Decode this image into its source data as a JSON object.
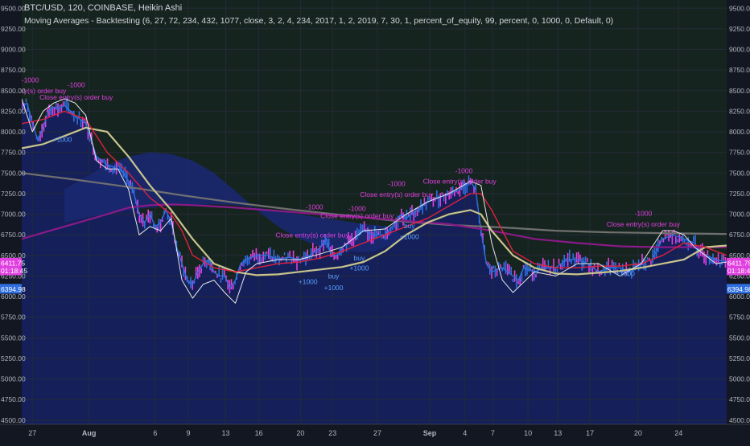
{
  "header": {
    "symbol_line": "BTC/USD, 120, COINBASE, Heikin Ashi",
    "study_line": "Moving Averages - Backtesting (6, 27, 72, 234, 432, 1077, close, 3, 2, 4, 234, 2017, 1, 2, 2019, 7, 30, 1, percent_of_equity, 99, percent, 0, 1000, 0, Default, 0)"
  },
  "colors": {
    "background": "#131722",
    "lower_fill": "#15205a",
    "cloud_fill": "#1a2870",
    "upper_fill": "#16241f",
    "grid": "#242a38",
    "axis_text": "#b2b5be",
    "candles": "#2f6fe0",
    "trade_buy": "#5aa0ff",
    "trade_close": "#e040e0",
    "ma_fast": "#e040e0",
    "ma_mid": "#e8e8e8",
    "ma_red": "#e02040",
    "ma_olive": "#c8c48c",
    "ma_gray": "#707070",
    "ma_purple": "#8a1a88"
  },
  "chart_data": {
    "type": "line",
    "title": "BTC/USD, 120, COINBASE, Heikin Ashi",
    "ylim": [
      4450,
      9600
    ],
    "y_ticks": [
      4500,
      4750,
      5000,
      5250,
      5500,
      5750,
      6000,
      6250,
      6500,
      6750,
      7000,
      7250,
      7500,
      7750,
      8000,
      8250,
      8500,
      8750,
      9000,
      9250,
      9500
    ],
    "y_tick_labels": [
      "4500.00",
      "4750.00",
      "5000.00",
      "5250.00",
      "5500.00",
      "5750.00",
      "6000.00",
      "6250.00",
      "6500.00",
      "6750.00",
      "7000.00",
      "7250.00",
      "7500.00",
      "7750.00",
      "8000.00",
      "8250.00",
      "8500.00",
      "8750.00",
      "9000.00",
      "9250.00",
      "9500.00"
    ],
    "x_range": [
      0,
      66
    ],
    "x_ticks": [
      {
        "x": 1,
        "label": "27"
      },
      {
        "x": 6.3,
        "label": "Aug"
      },
      {
        "x": 12.5,
        "label": "6"
      },
      {
        "x": 15.6,
        "label": "9"
      },
      {
        "x": 19.1,
        "label": "13"
      },
      {
        "x": 22.2,
        "label": "16"
      },
      {
        "x": 26.1,
        "label": "20"
      },
      {
        "x": 29.1,
        "label": "23"
      },
      {
        "x": 33.3,
        "label": "27"
      },
      {
        "x": 38.2,
        "label": "Sep"
      },
      {
        "x": 41.5,
        "label": "4"
      },
      {
        "x": 44.1,
        "label": "7"
      },
      {
        "x": 47.4,
        "label": "10"
      },
      {
        "x": 50.2,
        "label": "13"
      },
      {
        "x": 53.2,
        "label": "17"
      },
      {
        "x": 57.7,
        "label": "20"
      },
      {
        "x": 61.5,
        "label": "24"
      }
    ],
    "price_badges": [
      {
        "value": 6411.75,
        "label": "6411.75",
        "color": "#e040e0"
      },
      {
        "value": 6318.45,
        "label": "01:18:45",
        "color": "#e040e0"
      },
      {
        "value": 6094.98,
        "label": "6394.98",
        "color": "#2f6fe0"
      }
    ],
    "price": {
      "name": "Heikin Ashi close",
      "x": [
        0,
        0.5,
        1,
        1.5,
        2,
        2.5,
        3,
        3.5,
        4,
        5,
        6,
        6.5,
        7,
        7.5,
        8,
        9,
        9.5,
        10,
        10.5,
        11,
        11.5,
        12,
        12.5,
        13,
        13.5,
        14,
        14.5,
        15,
        15.5,
        16,
        16.5,
        17,
        17.5,
        18,
        18.5,
        19,
        19.5,
        20,
        20.5,
        21,
        22,
        23,
        24,
        25,
        26,
        27,
        28,
        28.5,
        29,
        29.5,
        30,
        31,
        32,
        33,
        34,
        35,
        35.5,
        36,
        37,
        38,
        39,
        40,
        41,
        42,
        42.5,
        43,
        43.5,
        44,
        45,
        46,
        46.5,
        47,
        48,
        49,
        50,
        51,
        52,
        53,
        54,
        55,
        56,
        57,
        58,
        59,
        60,
        61,
        62,
        63,
        63.5,
        64,
        65,
        66
      ],
      "y": [
        8300,
        8350,
        8100,
        7900,
        8050,
        8250,
        8300,
        8280,
        8320,
        8200,
        8100,
        7900,
        7700,
        7650,
        7600,
        7550,
        7500,
        7400,
        7250,
        7000,
        6900,
        7000,
        6850,
        6900,
        7050,
        6900,
        6600,
        6400,
        6200,
        6150,
        6300,
        6400,
        6450,
        6300,
        6250,
        6250,
        6100,
        6200,
        6400,
        6450,
        6500,
        6500,
        6450,
        6480,
        6450,
        6500,
        6600,
        6700,
        6500,
        6500,
        6600,
        6700,
        6800,
        6750,
        6750,
        6900,
        7000,
        6950,
        7050,
        7150,
        7200,
        7250,
        7300,
        7400,
        7300,
        6800,
        6400,
        6300,
        6350,
        6250,
        6200,
        6350,
        6300,
        6350,
        6350,
        6450,
        6450,
        6400,
        6300,
        6350,
        6350,
        6300,
        6400,
        6450,
        6700,
        6750,
        6700,
        6650,
        6550,
        6500,
        6450,
        6420
      ]
    },
    "series": [
      {
        "key": "ma_mid",
        "x": [
          0,
          1,
          2,
          3,
          4,
          5,
          6,
          7,
          8,
          9,
          10,
          11,
          12,
          13,
          14,
          15,
          16,
          17,
          18,
          19,
          20,
          21,
          22,
          24,
          26,
          28,
          30,
          32,
          34,
          36,
          38,
          40,
          42,
          43,
          44,
          45,
          46,
          48,
          50,
          52,
          54,
          56,
          58,
          60,
          61,
          62,
          63,
          64,
          65,
          66
        ],
        "y": [
          8400,
          8000,
          8250,
          8350,
          8400,
          8350,
          8200,
          7650,
          7550,
          7550,
          7300,
          6750,
          6850,
          6800,
          6950,
          6200,
          5980,
          6150,
          6200,
          6050,
          5920,
          6300,
          6400,
          6450,
          6450,
          6520,
          6600,
          6800,
          6820,
          7000,
          7150,
          7250,
          7400,
          7350,
          6650,
          6200,
          6050,
          6300,
          6250,
          6400,
          6400,
          6250,
          6400,
          6800,
          6800,
          6750,
          6600,
          6500,
          6400,
          6420
        ]
      },
      {
        "key": "ma_red",
        "x": [
          0,
          2,
          4,
          6,
          7,
          8,
          10,
          12,
          14,
          15,
          16,
          18,
          20,
          22,
          24,
          26,
          28,
          30,
          32,
          34,
          36,
          38,
          40,
          42,
          43,
          44,
          45,
          46,
          48,
          50,
          52,
          54,
          56,
          58,
          60,
          62,
          64,
          66
        ],
        "y": [
          8100,
          8150,
          8250,
          8150,
          7950,
          7750,
          7500,
          7200,
          7000,
          6800,
          6500,
          6350,
          6300,
          6350,
          6400,
          6420,
          6470,
          6550,
          6650,
          6750,
          6850,
          6950,
          7100,
          7250,
          7250,
          7050,
          6800,
          6550,
          6400,
          6350,
          6350,
          6370,
          6370,
          6400,
          6500,
          6650,
          6600,
          6500
        ]
      },
      {
        "key": "ma_olive",
        "x": [
          0,
          2,
          4,
          6,
          8,
          10,
          12,
          14,
          16,
          18,
          20,
          22,
          24,
          26,
          28,
          30,
          32,
          34,
          36,
          38,
          40,
          42,
          43,
          44,
          46,
          48,
          50,
          52,
          54,
          56,
          58,
          60,
          62,
          64,
          66
        ],
        "y": [
          7800,
          7850,
          7950,
          8050,
          8000,
          7700,
          7350,
          7050,
          6700,
          6400,
          6300,
          6260,
          6270,
          6300,
          6330,
          6360,
          6420,
          6550,
          6750,
          6900,
          7000,
          7050,
          7000,
          6800,
          6500,
          6350,
          6280,
          6270,
          6290,
          6310,
          6350,
          6400,
          6450,
          6600,
          6620
        ]
      },
      {
        "key": "ma_gray",
        "x": [
          0,
          5,
          10,
          15,
          20,
          25,
          30,
          35,
          40,
          45,
          50,
          55,
          60,
          66
        ],
        "y": [
          7500,
          7420,
          7330,
          7230,
          7140,
          7060,
          6990,
          6920,
          6870,
          6840,
          6800,
          6780,
          6770,
          6760
        ]
      },
      {
        "key": "ma_purple",
        "x": [
          0,
          4,
          8,
          10,
          12,
          14,
          16,
          20,
          24,
          28,
          32,
          36,
          40,
          44,
          48,
          52,
          56,
          60,
          64,
          66
        ],
        "y": [
          6700,
          6850,
          7000,
          7080,
          7110,
          7120,
          7110,
          7080,
          7040,
          7000,
          6960,
          6920,
          6880,
          6800,
          6700,
          6650,
          6610,
          6600,
          6600,
          6600
        ]
      }
    ],
    "cloud": {
      "x": [
        4,
        6,
        8,
        10,
        12,
        14,
        16,
        18,
        20,
        22,
        24,
        26,
        28,
        30,
        32,
        33,
        34,
        35,
        36,
        34.5,
        32,
        30,
        28,
        26,
        24,
        22,
        20,
        18,
        16,
        14,
        12,
        10,
        8,
        6,
        4
      ],
      "y": [
        7300,
        7450,
        7600,
        7700,
        7750,
        7730,
        7650,
        7500,
        7280,
        7050,
        6850,
        6700,
        6600,
        6560,
        6540,
        6550,
        6600,
        6650,
        6700,
        6850,
        6880,
        6920,
        6960,
        7000,
        7040,
        7080,
        7110,
        7120,
        7110,
        7100,
        7080,
        7050,
        7000,
        6960,
        6900
      ]
    },
    "annotations": [
      {
        "x": 0.8,
        "y": 8600,
        "text": "-1000",
        "role": "close"
      },
      {
        "x": 1.6,
        "y": 8470,
        "text": "Entry(s) order buy",
        "role": "close"
      },
      {
        "x": 5.1,
        "y": 8540,
        "text": "-1000",
        "role": "close"
      },
      {
        "x": 5.1,
        "y": 8390,
        "text": "Close entry(s) order buy",
        "role": "close"
      },
      {
        "x": 3.8,
        "y": 7880,
        "text": "+1000",
        "role": "buy"
      },
      {
        "x": 27.4,
        "y": 7060,
        "text": "-1000",
        "role": "close"
      },
      {
        "x": 27.2,
        "y": 6720,
        "text": "Close entry(s) order buy",
        "role": "close"
      },
      {
        "x": 26.8,
        "y": 6150,
        "text": "+1000",
        "role": "buy"
      },
      {
        "x": 29.2,
        "y": 6220,
        "text": "buy",
        "role": "buy"
      },
      {
        "x": 29.2,
        "y": 6080,
        "text": "+1000",
        "role": "buy"
      },
      {
        "x": 31.4,
        "y": 7040,
        "text": "-1000",
        "role": "close"
      },
      {
        "x": 31.4,
        "y": 6950,
        "text": "Close entry(s) order buy",
        "role": "close"
      },
      {
        "x": 31.6,
        "y": 6440,
        "text": "buy",
        "role": "buy"
      },
      {
        "x": 31.6,
        "y": 6320,
        "text": "+1000",
        "role": "buy"
      },
      {
        "x": 35.1,
        "y": 7340,
        "text": "-1000",
        "role": "close"
      },
      {
        "x": 35.1,
        "y": 7210,
        "text": "Close entry(s) order buy",
        "role": "close"
      },
      {
        "x": 36.3,
        "y": 6830,
        "text": "buy",
        "role": "buy"
      },
      {
        "x": 36.3,
        "y": 6700,
        "text": "+1000",
        "role": "buy"
      },
      {
        "x": 41.4,
        "y": 7500,
        "text": "-1000",
        "role": "close"
      },
      {
        "x": 41.0,
        "y": 7370,
        "text": "Close entry(s) order buy",
        "role": "close"
      },
      {
        "x": 58.2,
        "y": 6980,
        "text": "-1000",
        "role": "close"
      },
      {
        "x": 58.2,
        "y": 6850,
        "text": "Close entry(s) order buy",
        "role": "close"
      },
      {
        "x": 56.5,
        "y": 6250,
        "text": "+1000",
        "role": "buy"
      }
    ]
  }
}
